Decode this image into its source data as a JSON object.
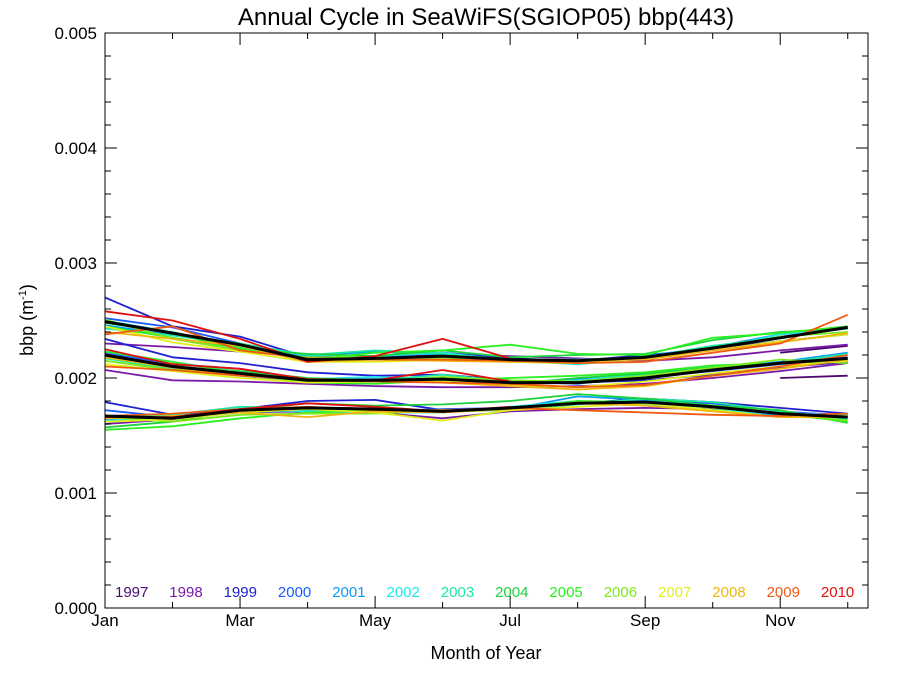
{
  "chart_data": {
    "type": "line",
    "title": "Annual Cycle in SeaWiFS(SGIOP05) bbp(443)",
    "xlabel": "Month of Year",
    "ylabel": {
      "base": "bbp (m",
      "sup": "-1",
      "close": ")"
    },
    "xlim": [
      1,
      12.3
    ],
    "ylim": [
      0,
      0.005
    ],
    "x_tick_labels": [
      {
        "x": 1,
        "label": "Jan"
      },
      {
        "x": 3,
        "label": "Mar"
      },
      {
        "x": 5,
        "label": "May"
      },
      {
        "x": 7,
        "label": "Jul"
      },
      {
        "x": 9,
        "label": "Sep"
      },
      {
        "x": 11,
        "label": "Nov"
      }
    ],
    "y_ticks": [
      {
        "value": 0,
        "label": "0.000"
      },
      {
        "value": 0.001,
        "label": "0.001"
      },
      {
        "value": 0.002,
        "label": "0.002"
      },
      {
        "value": 0.003,
        "label": "0.003"
      },
      {
        "value": 0.004,
        "label": "0.004"
      },
      {
        "value": 0.005,
        "label": "0.005"
      }
    ],
    "legend_position": "bottom, inside plot",
    "x": [
      1,
      2,
      3,
      4,
      5,
      6,
      7,
      8,
      9,
      10,
      11,
      12
    ],
    "series": [
      {
        "name": "1997",
        "color": "#4b0a6e",
        "groups": [
          [
            null,
            null,
            null,
            null,
            null,
            null,
            null,
            null,
            null,
            null,
            2.0,
            2.02
          ],
          [
            null,
            null,
            null,
            null,
            null,
            null,
            null,
            null,
            null,
            null,
            2.22,
            2.28
          ]
        ]
      },
      {
        "name": "1998",
        "color": "#7a1aa8",
        "groups": [
          [
            2.07,
            1.98,
            1.97,
            1.95,
            1.93,
            1.92,
            1.92,
            1.93,
            1.95,
            2.0,
            2.06,
            2.13
          ],
          [
            2.3,
            2.27,
            2.23,
            2.19,
            2.18,
            2.2,
            2.19,
            2.17,
            2.15,
            2.18,
            2.24,
            2.29
          ],
          [
            1.6,
            1.64,
            1.7,
            1.71,
            1.7,
            1.65,
            1.71,
            1.73,
            1.74,
            1.73,
            1.7,
            1.68
          ]
        ]
      },
      {
        "name": "1999",
        "color": "#2020d0",
        "groups": [
          [
            2.7,
            2.45,
            2.36,
            2.18,
            2.19,
            2.22,
            2.17,
            2.15,
            2.2,
            2.25,
            2.32,
            2.38
          ],
          [
            2.34,
            2.18,
            2.13,
            2.05,
            2.02,
            2.03,
            1.98,
            1.96,
            1.98,
            2.03,
            2.09,
            2.14
          ],
          [
            1.79,
            1.68,
            1.73,
            1.8,
            1.81,
            1.72,
            1.72,
            1.78,
            1.82,
            1.79,
            1.74,
            1.69
          ]
        ]
      },
      {
        "name": "2000",
        "color": "#1a5cff",
        "groups": [
          [
            2.52,
            2.44,
            2.3,
            2.17,
            2.19,
            2.18,
            2.15,
            2.14,
            2.19,
            2.27,
            2.36,
            2.43
          ],
          [
            2.22,
            2.12,
            2.08,
            1.99,
            1.99,
            1.97,
            1.95,
            1.99,
            2.01,
            2.06,
            2.12,
            2.18
          ],
          [
            1.72,
            1.66,
            1.72,
            1.74,
            1.71,
            1.73,
            1.74,
            1.78,
            1.8,
            1.78,
            1.71,
            1.67
          ]
        ]
      },
      {
        "name": "2001",
        "color": "#0a9cf0",
        "groups": [
          [
            2.46,
            2.37,
            2.29,
            2.19,
            2.23,
            2.2,
            2.16,
            2.12,
            2.19,
            2.27,
            2.38,
            2.44
          ],
          [
            2.18,
            2.1,
            2.02,
            1.97,
            1.99,
            2.0,
            1.97,
            1.95,
            2.02,
            2.09,
            2.14,
            2.22
          ],
          [
            1.64,
            1.66,
            1.7,
            1.72,
            1.73,
            1.72,
            1.73,
            1.84,
            1.81,
            1.74,
            1.67,
            1.66
          ]
        ]
      },
      {
        "name": "2002",
        "color": "#20e8e8",
        "groups": [
          [
            2.5,
            2.4,
            2.27,
            2.2,
            2.19,
            2.22,
            2.15,
            2.12,
            2.17,
            2.25,
            2.38,
            2.43
          ],
          [
            2.23,
            2.14,
            2.05,
            1.99,
            2.01,
            1.99,
            1.96,
            1.98,
            2.03,
            2.08,
            2.13,
            2.17
          ],
          [
            1.63,
            1.66,
            1.73,
            1.71,
            1.7,
            1.7,
            1.75,
            1.8,
            1.77,
            1.72,
            1.69,
            1.68
          ]
        ]
      },
      {
        "name": "2003",
        "color": "#1ce8a0",
        "groups": [
          [
            2.43,
            2.37,
            2.3,
            2.2,
            2.24,
            2.21,
            2.16,
            2.16,
            2.18,
            2.28,
            2.35,
            2.45
          ],
          [
            2.17,
            2.08,
            2.02,
            1.97,
            1.98,
            2.03,
            1.97,
            1.97,
            2.03,
            2.1,
            2.13,
            2.21
          ],
          [
            1.67,
            1.68,
            1.75,
            1.74,
            1.7,
            1.71,
            1.72,
            1.77,
            1.82,
            1.79,
            1.71,
            1.64
          ]
        ]
      },
      {
        "name": "2004",
        "color": "#1ad23c",
        "groups": [
          [
            2.48,
            2.39,
            2.25,
            2.21,
            2.19,
            2.24,
            2.18,
            2.2,
            2.21,
            2.33,
            2.4,
            2.43
          ],
          [
            2.2,
            2.1,
            2.06,
            2.0,
            1.98,
            2.0,
            1.95,
            2.0,
            2.04,
            2.09,
            2.13,
            2.15
          ],
          [
            1.57,
            1.62,
            1.72,
            1.78,
            1.76,
            1.77,
            1.8,
            1.86,
            1.82,
            1.76,
            1.72,
            1.61
          ]
        ]
      },
      {
        "name": "2005",
        "color": "#2af021",
        "groups": [
          [
            2.45,
            2.35,
            2.26,
            2.16,
            2.22,
            2.24,
            2.29,
            2.21,
            2.2,
            2.35,
            2.39,
            2.45
          ],
          [
            2.23,
            2.14,
            2.04,
            1.96,
            1.95,
            1.98,
            2.0,
            2.02,
            2.05,
            2.11,
            2.13,
            2.16
          ],
          [
            1.55,
            1.58,
            1.65,
            1.7,
            1.72,
            1.72,
            1.73,
            1.8,
            1.79,
            1.76,
            1.69,
            1.62
          ]
        ]
      },
      {
        "name": "2006",
        "color": "#7fe81c",
        "groups": [
          [
            2.51,
            2.34,
            2.24,
            2.18,
            2.18,
            2.17,
            2.14,
            2.13,
            2.18,
            2.26,
            2.36,
            2.4
          ],
          [
            2.15,
            2.07,
            2.04,
            1.98,
            1.97,
            2.01,
            1.98,
            1.97,
            2.02,
            2.09,
            2.16,
            2.13
          ],
          [
            1.66,
            1.62,
            1.68,
            1.69,
            1.69,
            1.72,
            1.72,
            1.79,
            1.79,
            1.74,
            1.69,
            1.63
          ]
        ]
      },
      {
        "name": "2007",
        "color": "#e0f01c",
        "groups": [
          [
            2.45,
            2.31,
            2.23,
            2.14,
            2.14,
            2.16,
            2.14,
            2.13,
            2.17,
            2.24,
            2.32,
            2.38
          ],
          [
            2.12,
            2.06,
            2.0,
            1.96,
            1.97,
            1.97,
            1.94,
            1.92,
            1.97,
            2.04,
            2.1,
            2.15
          ],
          [
            1.62,
            1.64,
            1.7,
            1.73,
            1.7,
            1.63,
            1.72,
            1.75,
            1.78,
            1.72,
            1.66,
            1.67
          ]
        ]
      },
      {
        "name": "2008",
        "color": "#f0b410",
        "groups": [
          [
            2.4,
            2.34,
            2.28,
            2.14,
            2.16,
            2.15,
            2.14,
            2.15,
            2.16,
            2.24,
            2.31,
            2.39
          ],
          [
            2.18,
            2.09,
            2.03,
            1.98,
            1.98,
            1.96,
            1.93,
            1.9,
            1.93,
            2.02,
            2.08,
            2.16
          ],
          [
            1.65,
            1.67,
            1.7,
            1.66,
            1.71,
            1.7,
            1.73,
            1.78,
            1.76,
            1.71,
            1.66,
            1.66
          ]
        ]
      },
      {
        "name": "2009",
        "color": "#f05a10",
        "groups": [
          [
            2.38,
            2.45,
            2.24,
            2.17,
            2.16,
            2.16,
            2.15,
            2.13,
            2.14,
            2.22,
            2.3,
            2.55
          ],
          [
            2.1,
            2.07,
            2.02,
            1.98,
            1.97,
            1.96,
            1.95,
            1.92,
            1.94,
            2.02,
            2.1,
            2.2
          ],
          [
            1.67,
            1.69,
            1.73,
            1.75,
            1.72,
            1.72,
            1.74,
            1.72,
            1.7,
            1.68,
            1.67,
            1.69
          ]
        ]
      },
      {
        "name": "2010",
        "color": "#e01010",
        "groups": [
          [
            2.58,
            2.5,
            2.34,
            2.14,
            2.19,
            2.34,
            2.17,
            null,
            null,
            null,
            null,
            null
          ],
          [
            2.25,
            2.12,
            2.08,
            1.99,
            1.98,
            2.07,
            1.97,
            null,
            null,
            null,
            null,
            null
          ],
          [
            1.66,
            1.66,
            1.73,
            1.78,
            1.75,
            1.71,
            1.75,
            null,
            null,
            null,
            null,
            null
          ]
        ]
      },
      {
        "name": "",
        "color": "#000000",
        "mean": true,
        "groups": [
          [
            2.49,
            2.39,
            2.29,
            2.16,
            2.17,
            2.19,
            2.16,
            2.15,
            2.18,
            2.26,
            2.35,
            2.44
          ],
          [
            2.2,
            2.1,
            2.04,
            1.98,
            1.98,
            1.99,
            1.96,
            1.96,
            2.0,
            2.07,
            2.13,
            2.17
          ],
          [
            1.67,
            1.65,
            1.72,
            1.74,
            1.73,
            1.71,
            1.74,
            1.78,
            1.79,
            1.75,
            1.69,
            1.66
          ]
        ]
      }
    ],
    "value_scale_note": "group values are bbp x 1000"
  }
}
